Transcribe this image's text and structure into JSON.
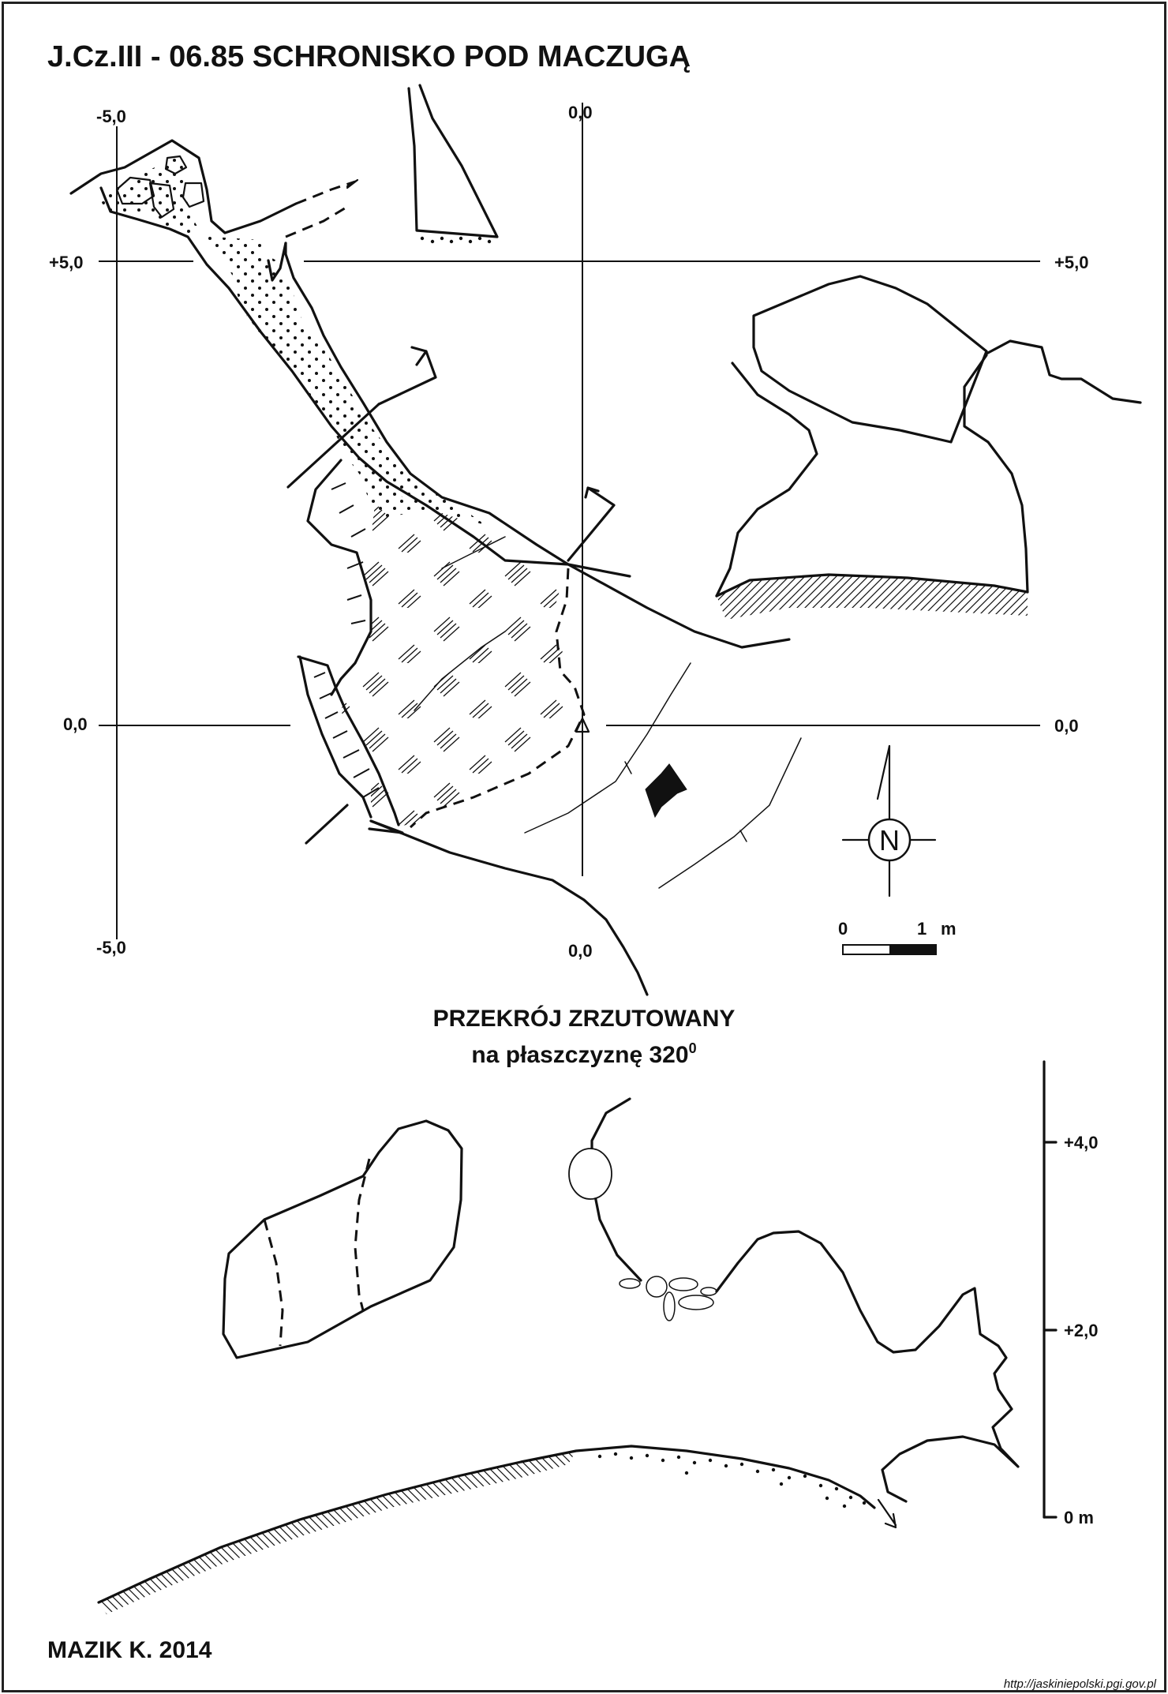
{
  "title": "J.Cz.III - 06.85  SCHRONISKO POD MACZUGĄ",
  "plan": {
    "x_labels": {
      "left": "-5,0",
      "center": "0,0"
    },
    "y_labels": {
      "top": "+5,0",
      "middle": "0,0"
    },
    "bottom_labels": {
      "left": "-5,0",
      "center": "0,0"
    },
    "right_labels": {
      "top": "+5,0",
      "middle": "0,0"
    },
    "north_label": "N",
    "scale": {
      "zero": "0",
      "one": "1",
      "unit": "m"
    }
  },
  "section": {
    "heading_line1": "PRZEKRÓJ ZRZUTOWANY",
    "heading_line2": "na płaszczyznę 320",
    "heading_sup": "0",
    "height_labels": [
      "+4,0",
      "+2,0",
      "0 m"
    ]
  },
  "author": "MAZIK K. 2014",
  "source": "http://jaskiniepolski.pgi.gov.pl"
}
